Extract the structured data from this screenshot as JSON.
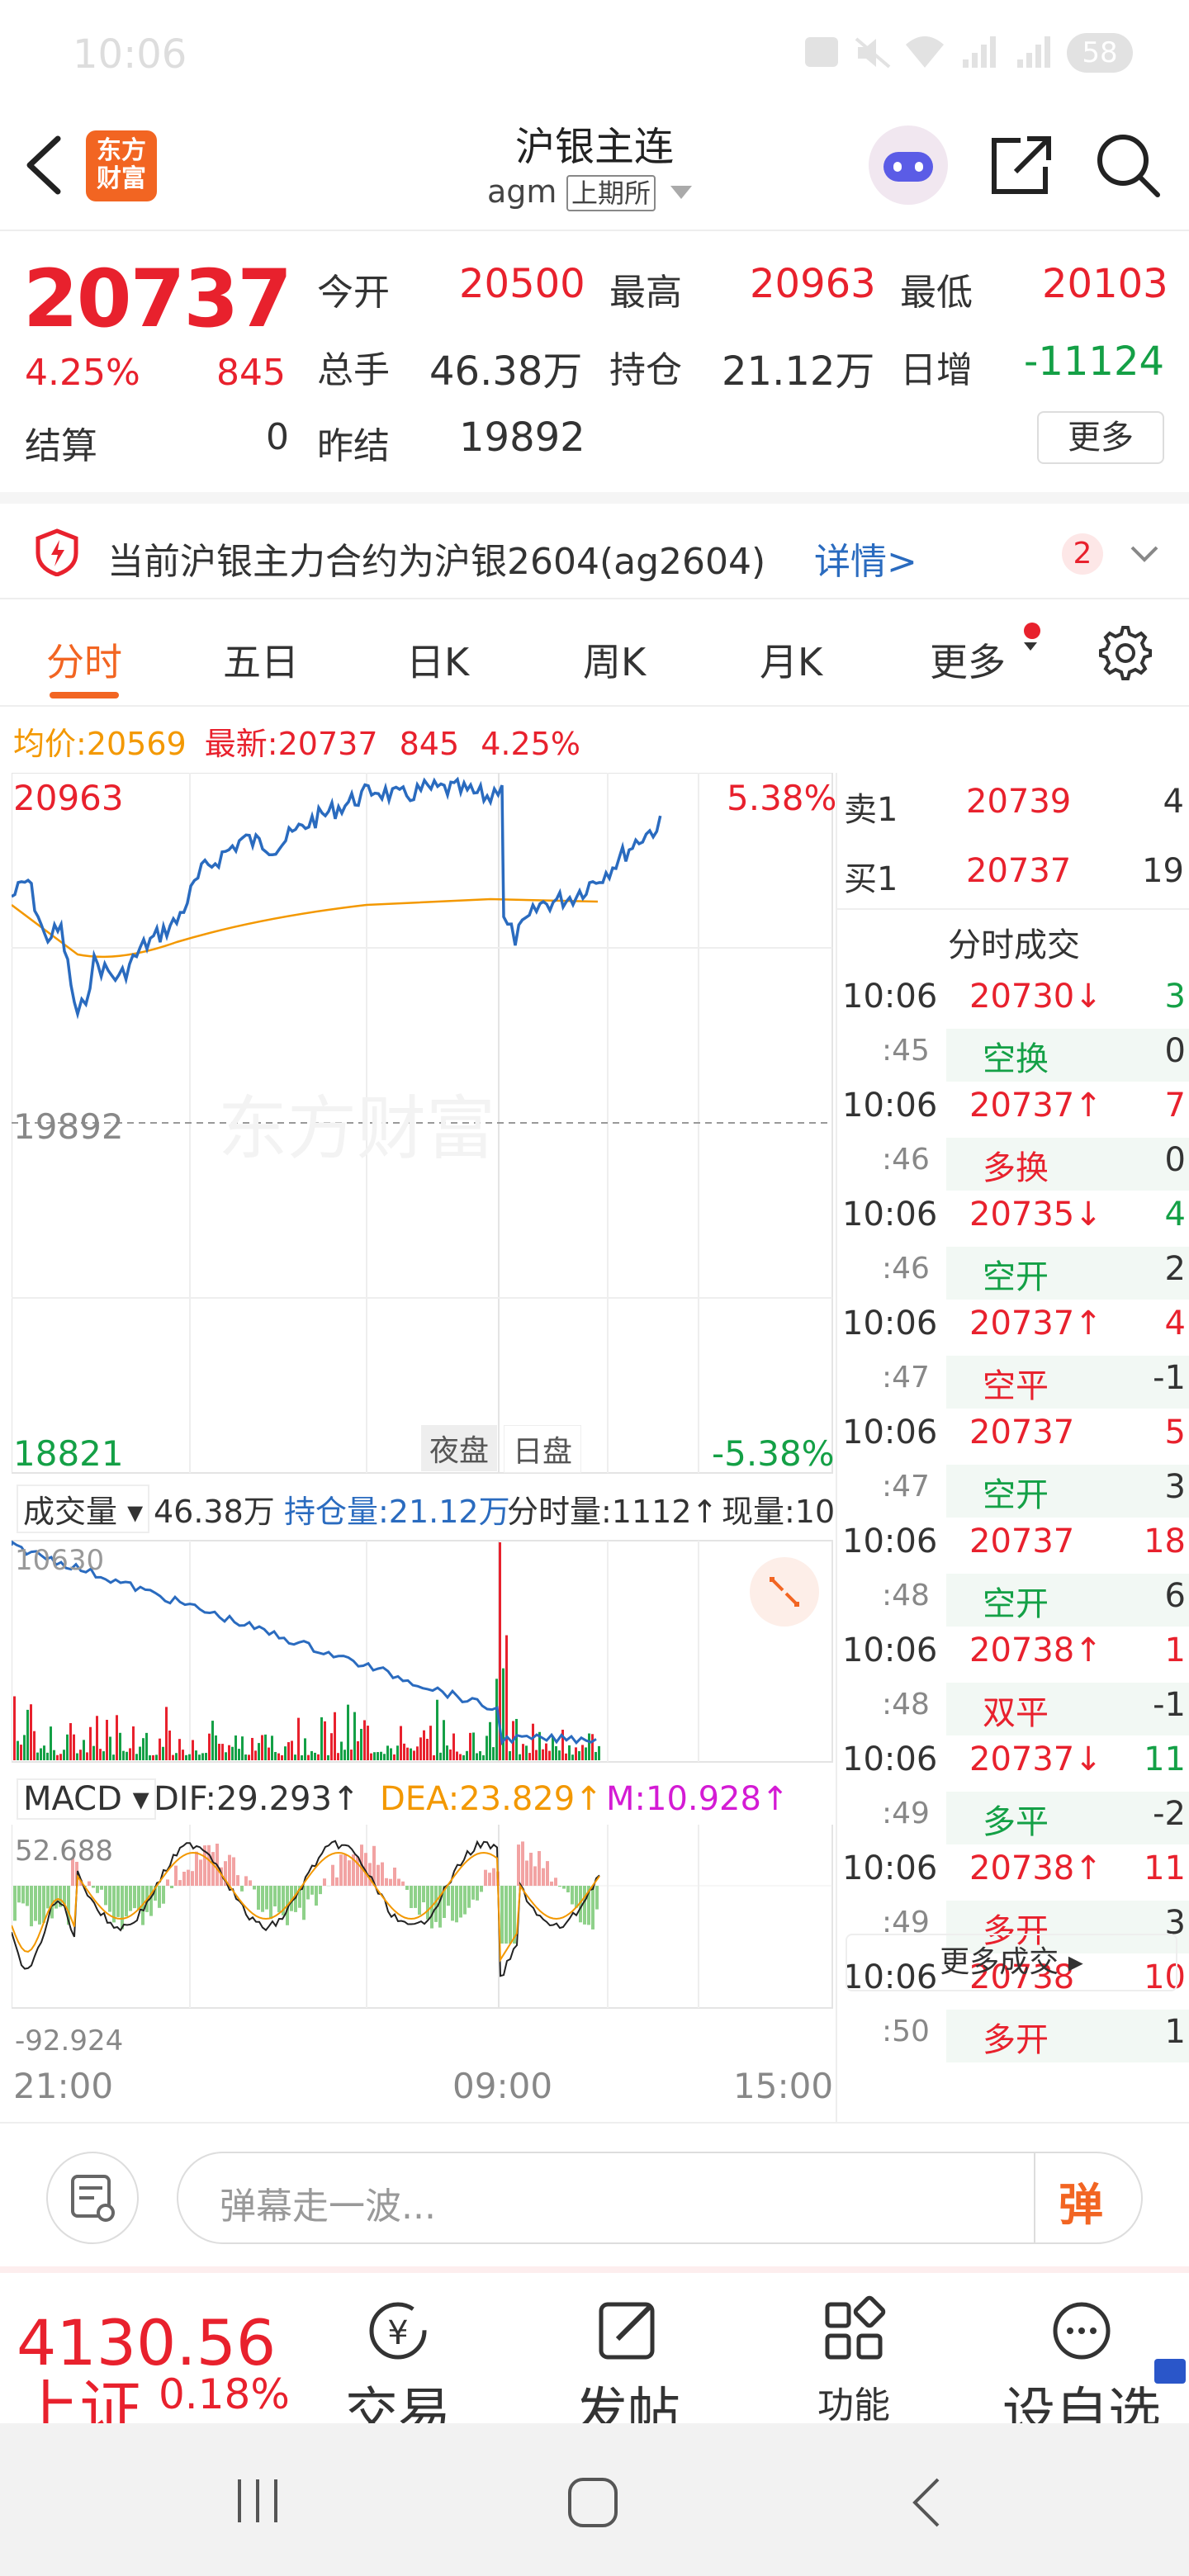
{
  "status_bar": {
    "time": "10:06",
    "battery": "58"
  },
  "header": {
    "title": "沪银主连",
    "code": "agm",
    "exchange": "上期所"
  },
  "quote": {
    "last": "20737",
    "change_pct": "4.25%",
    "change": "845",
    "settle_label": "结算",
    "settle": "0",
    "open_label": "今开",
    "open": "20500",
    "high_label": "最高",
    "high": "20963",
    "low_label": "最低",
    "low": "20103",
    "volume_label": "总手",
    "volume": "46.38万",
    "position_label": "持仓",
    "position": "21.12万",
    "daily_inc_label": "日增",
    "daily_inc": "-11124",
    "prev_settle_label": "昨结",
    "prev_settle": "19892",
    "more_label": "更多"
  },
  "notice": {
    "text": "当前沪银主力合约为沪银2604(ag2604)",
    "link": "详情>",
    "count": "2"
  },
  "tabs": [
    "分时",
    "五日",
    "日K",
    "周K",
    "月K",
    "更多"
  ],
  "chart": {
    "avg_label": "均价:",
    "avg": "20569",
    "latest_label": "最新:",
    "latest": "20737",
    "latest_change": "845",
    "latest_pct": "4.25%",
    "price_top": "20963",
    "price_mid": "19892",
    "price_bottom": "18821",
    "pct_top": "5.38%",
    "pct_bottom": "-5.38%",
    "watermark": "东方财富",
    "night_label": "夜盘",
    "day_label": "日盘",
    "vol_selector": "成交量",
    "vol_total": "46.38万",
    "pos_label": "持仓量:21.12万",
    "minute_vol": "分时量:1112↑",
    "current_vol": "现量:10",
    "vol_axis_top": "10630",
    "macd_selector": "MACD",
    "dif": "DIF:29.293↑",
    "dea": "DEA:23.829↑",
    "m": "M:10.928↑",
    "macd_top": "52.688",
    "macd_bottom": "-92.924",
    "time_start": "21:00",
    "time_mid": "09:00",
    "time_end": "15:00"
  },
  "orderbook": {
    "ask_label": "卖1",
    "ask_price": "20739",
    "ask_vol": "4",
    "bid_label": "买1",
    "bid_price": "20737",
    "bid_vol": "19",
    "trades_title": "分时成交",
    "trades": [
      {
        "time": "10:06",
        "price": "20730↓",
        "vol": "3",
        "dir": "down",
        "sec": ":45",
        "type": "空换",
        "pos": "0",
        "tcolor": "green"
      },
      {
        "time": "10:06",
        "price": "20737↑",
        "vol": "7",
        "dir": "up",
        "sec": ":46",
        "type": "多换",
        "pos": "0",
        "tcolor": "red"
      },
      {
        "time": "10:06",
        "price": "20735↓",
        "vol": "4",
        "dir": "down",
        "sec": ":46",
        "type": "空开",
        "pos": "2",
        "tcolor": "green"
      },
      {
        "time": "10:06",
        "price": "20737↑",
        "vol": "4",
        "dir": "up",
        "sec": ":47",
        "type": "空平",
        "pos": "-1",
        "tcolor": "red"
      },
      {
        "time": "10:06",
        "price": "20737",
        "vol": "5",
        "dir": "up",
        "sec": ":47",
        "type": "空开",
        "pos": "3",
        "tcolor": "green"
      },
      {
        "time": "10:06",
        "price": "20737",
        "vol": "18",
        "dir": "up",
        "sec": ":48",
        "type": "空开",
        "pos": "6",
        "tcolor": "green"
      },
      {
        "time": "10:06",
        "price": "20738↑",
        "vol": "1",
        "dir": "up",
        "sec": ":48",
        "type": "双平",
        "pos": "-1",
        "tcolor": "red"
      },
      {
        "time": "10:06",
        "price": "20737↓",
        "vol": "11",
        "dir": "down",
        "sec": ":49",
        "type": "多平",
        "pos": "-2",
        "tcolor": "green"
      },
      {
        "time": "10:06",
        "price": "20738↑",
        "vol": "11",
        "dir": "up",
        "sec": ":49",
        "type": "多开",
        "pos": "3",
        "tcolor": "red"
      },
      {
        "time": "10:06",
        "price": "20738",
        "vol": "10",
        "dir": "up",
        "sec": ":50",
        "type": "多开",
        "pos": "1",
        "tcolor": "red"
      }
    ],
    "more_trades": "更多成交"
  },
  "danmu": {
    "placeholder": "弹幕走一波...",
    "button": "弹"
  },
  "toolbar": {
    "index_value": "4130.56",
    "index_name": "上证",
    "index_pct": "0.18%",
    "trade": "交易",
    "post": "发帖",
    "func": "功能",
    "fav": "设自选"
  },
  "colors": {
    "up": "#e8212d",
    "down": "#14a046",
    "accent": "#f26522",
    "price_line": "#2a6bbf",
    "avg_line": "#f39800"
  }
}
